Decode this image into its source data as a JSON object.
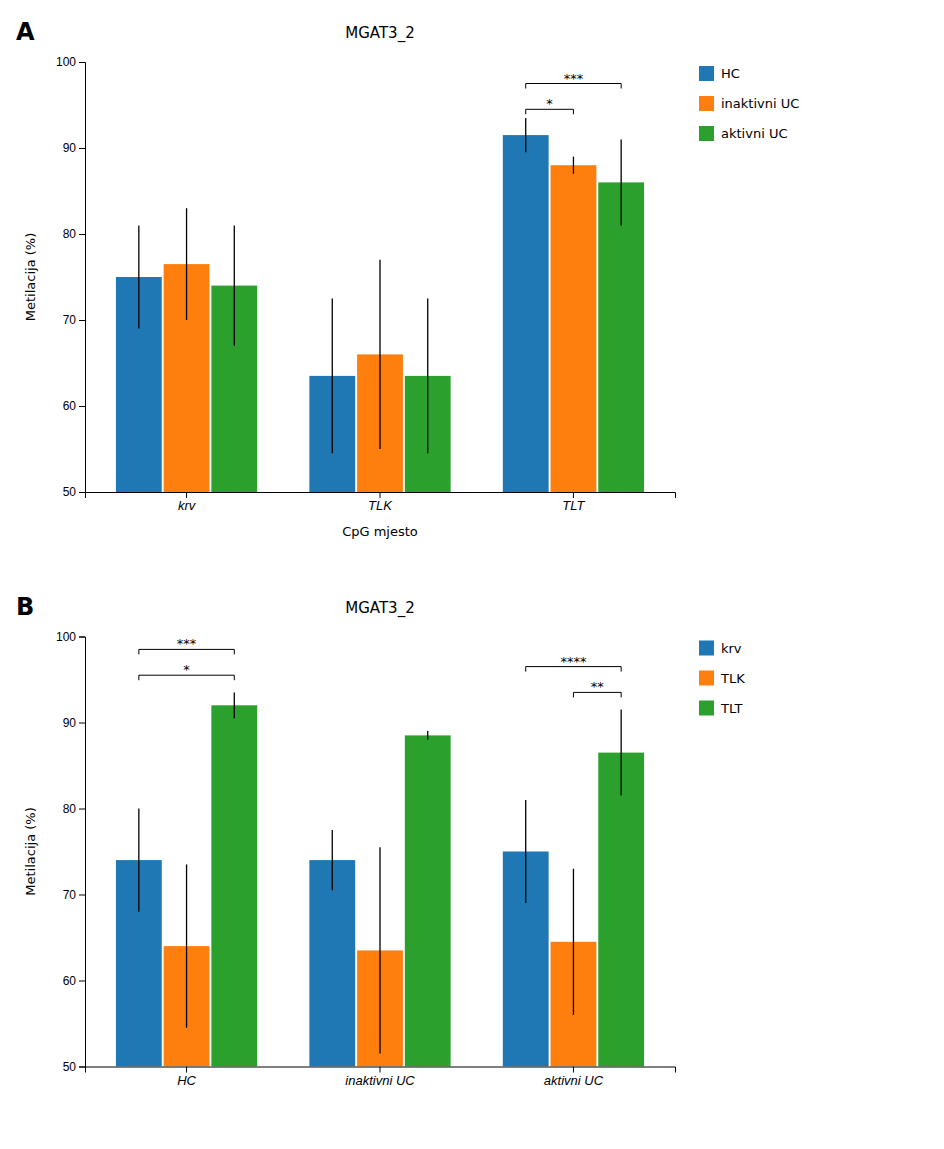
{
  "chart_data": [
    {
      "type": "bar",
      "title": "MGAT3_2",
      "label": "A",
      "categories": [
        "krv",
        "TLK",
        "TLT"
      ],
      "series": [
        {
          "name": "HC",
          "values": [
            75.0,
            63.5,
            91.5
          ],
          "errors": [
            6.0,
            9.0,
            2.0
          ]
        },
        {
          "name": "inaktivni UC",
          "values": [
            76.5,
            66.0,
            88.0
          ],
          "errors": [
            6.5,
            11.0,
            1.0
          ]
        },
        {
          "name": "aktivni UC",
          "values": [
            74.0,
            63.5,
            86.0
          ],
          "errors": [
            7.0,
            9.0,
            5.0
          ]
        }
      ],
      "ylim": [
        50,
        100
      ],
      "yticks": [
        50,
        60,
        70,
        80,
        90,
        100
      ],
      "ylabel": "Metilacija (%)",
      "xlabel": "CpG mjesto",
      "grid": false,
      "legend": "right",
      "annotations": [
        {
          "text": "*",
          "category": "TLT",
          "from": "HC",
          "to": "inaktivni UC",
          "y": 94.5
        },
        {
          "text": "***",
          "category": "TLT",
          "from": "HC",
          "to": "aktivni UC",
          "y": 97.5
        }
      ]
    },
    {
      "type": "bar",
      "title": "MGAT3_2",
      "label": "B",
      "categories": [
        "HC",
        "inaktivni UC",
        "aktivni UC"
      ],
      "series": [
        {
          "name": "krv",
          "values": [
            74.0,
            74.0,
            75.0
          ],
          "errors": [
            6.0,
            3.5,
            6.0
          ]
        },
        {
          "name": "TLK",
          "values": [
            64.0,
            63.5,
            64.5
          ],
          "errors": [
            9.5,
            12.0,
            8.5
          ]
        },
        {
          "name": "TLT",
          "values": [
            92.0,
            88.5,
            86.5
          ],
          "errors": [
            1.5,
            0.5,
            5.0
          ]
        }
      ],
      "ylim": [
        50,
        100
      ],
      "yticks": [
        50,
        60,
        70,
        80,
        90,
        100
      ],
      "ylabel": "Metilacija (%)",
      "grid": false,
      "legend": "right",
      "annotations": [
        {
          "text": "*",
          "category": "HC",
          "from": "krv",
          "to": "TLT",
          "y": 95.5
        },
        {
          "text": "***",
          "category": "HC",
          "from": "krv",
          "to": "TLT",
          "y": 98.5
        },
        {
          "text": "**",
          "category": "aktivni UC",
          "from": "TLK",
          "to": "TLT",
          "y": 93.5
        },
        {
          "text": "****",
          "category": "aktivni UC",
          "from": "krv",
          "to": "TLT",
          "y": 96.5
        }
      ]
    }
  ]
}
